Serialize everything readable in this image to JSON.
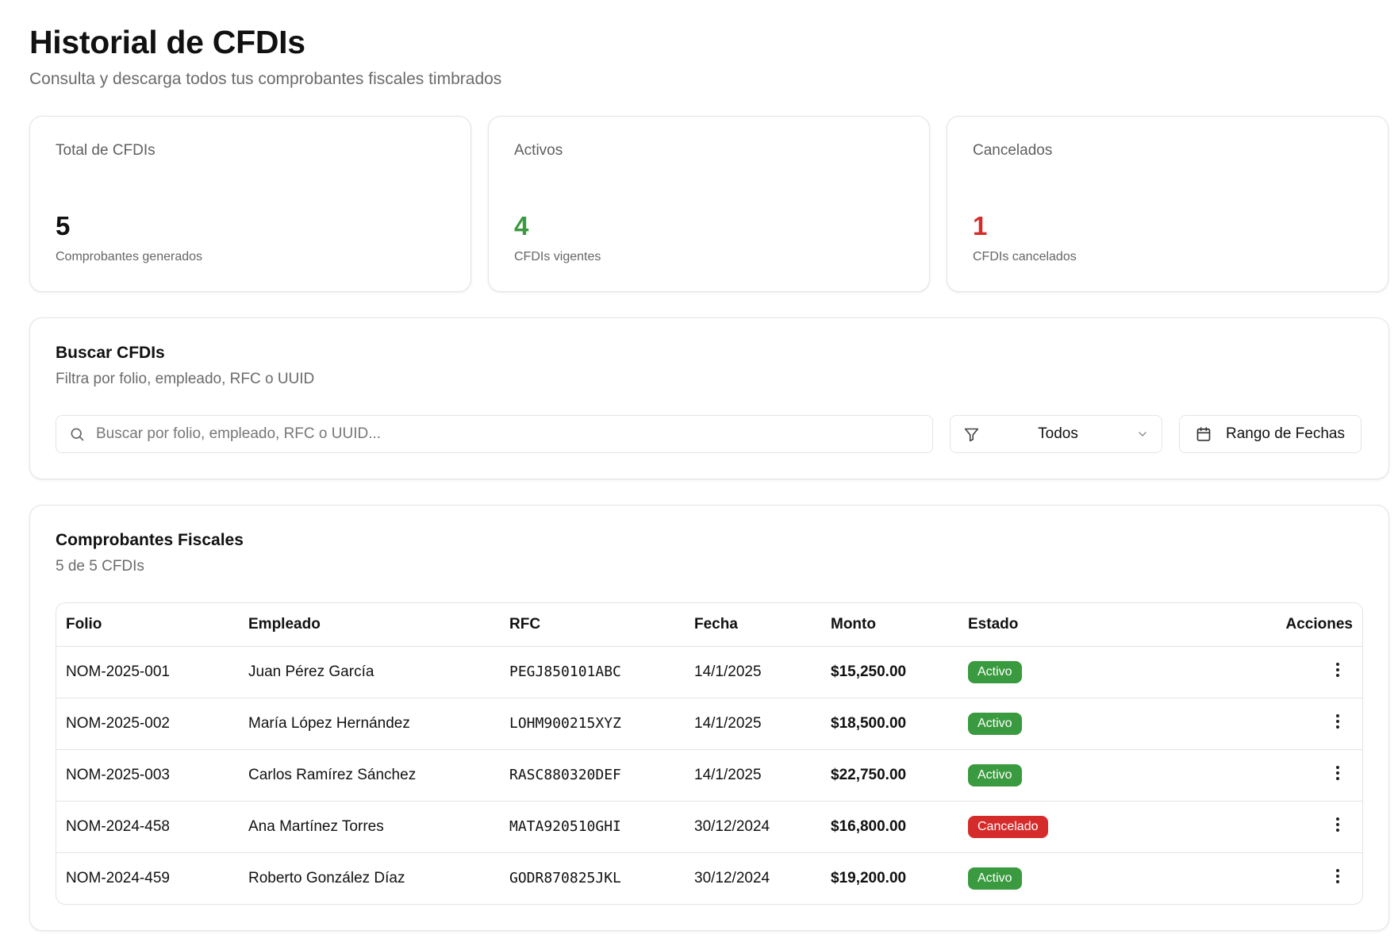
{
  "header": {
    "title": "Historial de CFDIs",
    "subtitle": "Consulta y descarga todos tus comprobantes fiscales timbrados"
  },
  "stats": [
    {
      "label": "Total de CFDIs",
      "value": "5",
      "description": "Comprobantes generados",
      "color": "#111111"
    },
    {
      "label": "Activos",
      "value": "4",
      "description": "CFDIs vigentes",
      "color": "#3a9a3f"
    },
    {
      "label": "Cancelados",
      "value": "1",
      "description": "CFDIs cancelados",
      "color": "#d62b2b"
    }
  ],
  "search": {
    "title": "Buscar CFDIs",
    "description": "Filtra por folio, empleado, RFC o UUID",
    "placeholder": "Buscar por folio, empleado, RFC o UUID...",
    "value": "",
    "status_filter": "Todos",
    "date_range_label": "Rango de Fechas"
  },
  "table": {
    "title": "Comprobantes Fiscales",
    "count_text": "5 de 5 CFDIs",
    "columns": [
      "Folio",
      "Empleado",
      "RFC",
      "Fecha",
      "Monto",
      "Estado",
      "Acciones"
    ],
    "rows": [
      {
        "folio": "NOM-2025-001",
        "empleado": "Juan Pérez García",
        "rfc": "PEGJ850101ABC",
        "fecha": "14/1/2025",
        "monto": "$15,250.00",
        "estado": "Activo"
      },
      {
        "folio": "NOM-2025-002",
        "empleado": "María López Hernández",
        "rfc": "LOHM900215XYZ",
        "fecha": "14/1/2025",
        "monto": "$18,500.00",
        "estado": "Activo"
      },
      {
        "folio": "NOM-2025-003",
        "empleado": "Carlos Ramírez Sánchez",
        "rfc": "RASC880320DEF",
        "fecha": "14/1/2025",
        "monto": "$22,750.00",
        "estado": "Activo"
      },
      {
        "folio": "NOM-2024-458",
        "empleado": "Ana Martínez Torres",
        "rfc": "MATA920510GHI",
        "fecha": "30/12/2024",
        "monto": "$16,800.00",
        "estado": "Cancelado"
      },
      {
        "folio": "NOM-2024-459",
        "empleado": "Roberto González Díaz",
        "rfc": "GODR870825JKL",
        "fecha": "30/12/2024",
        "monto": "$19,200.00",
        "estado": "Activo"
      }
    ]
  },
  "status_colors": {
    "Activo": "#3a9a3f",
    "Cancelado": "#d62b2b"
  },
  "icons": {
    "search": "search-icon",
    "filter": "filter-icon",
    "chevron": "chevron-down-icon",
    "calendar": "calendar-icon",
    "row_actions": "more-vertical-icon"
  }
}
